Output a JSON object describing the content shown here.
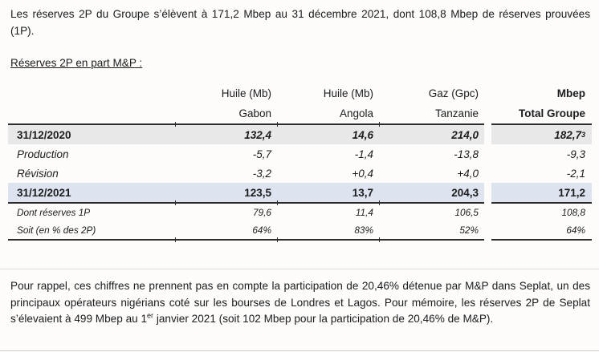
{
  "intro": {
    "text": "Les réserves 2P du Groupe s’élèvent à 171,2 Mbep au 31 décembre 2021, dont 108,8 Mbep de réserves prouvées (1P)."
  },
  "section_heading": "Réserves 2P en part M&P :",
  "table": {
    "columns": [
      {
        "unit": "Huile (Mb)",
        "region": "Gabon"
      },
      {
        "unit": "Huile (Mb)",
        "region": "Angola"
      },
      {
        "unit": "Gaz (Gpc)",
        "region": "Tanzanie"
      },
      {
        "unit": "Mbep",
        "region": "Total Groupe"
      }
    ],
    "rows": [
      {
        "label": "31/12/2020",
        "gabon": "132,4",
        "angola": "14,6",
        "tanzanie": "214,0",
        "total": "182,7",
        "total_footnote": "3"
      },
      {
        "label": "Production",
        "gabon": "-5,7",
        "angola": "-1,4",
        "tanzanie": "-13,8",
        "total": "-9,3"
      },
      {
        "label": "Révision",
        "gabon": "-3,2",
        "angola": "+0,4",
        "tanzanie": "+4,0",
        "total": "-2,1"
      },
      {
        "label": "31/12/2021",
        "gabon": "123,5",
        "angola": "13,7",
        "tanzanie": "204,3",
        "total": "171,2"
      },
      {
        "label": "Dont réserves 1P",
        "gabon": "79,6",
        "angola": "11,4",
        "tanzanie": "106,5",
        "total": "108,8"
      },
      {
        "label": "Soit (en % des 2P)",
        "gabon": "64%",
        "angola": "83%",
        "tanzanie": "52%",
        "total": "64%"
      }
    ]
  },
  "footer": {
    "part1": "Pour rappel, ces chiffres ne prennent pas en compte la participation de 20,46% détenue par M&P dans Seplat, un des principaux opérateurs nigérians coté sur les bourses de Londres et Lagos. Pour mémoire, les réserves 2P de Seplat s’élevaient à 499 Mbep au 1",
    "sup": "er",
    "part2": " janvier 2021 (soit 102 Mbep pour la participation de 20,46% de M&P)."
  },
  "colors": {
    "row_2020_bg": "#e8e8e8",
    "row_2021_bg": "#dde3ef",
    "table_rule": "#2d2d2d",
    "text": "#1c1c1c"
  }
}
